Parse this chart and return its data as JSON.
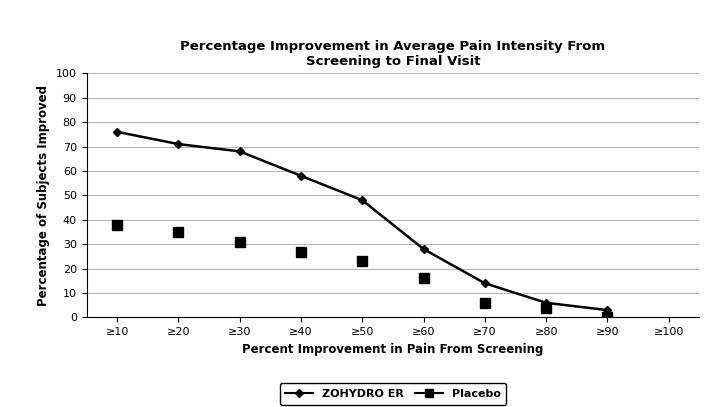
{
  "title": "Percentage Improvement in Average Pain Intensity From\nScreening to Final Visit",
  "xlabel": "Percent Improvement in Pain From Screening",
  "ylabel": "Percentage of Subjects Improved",
  "x_labels": [
    "≥10",
    "≥20",
    "≥30",
    "≥40",
    "≥50",
    "≥60",
    "≥70",
    "≥80",
    "≥90",
    "≥100"
  ],
  "x_values": [
    10,
    20,
    30,
    40,
    50,
    60,
    70,
    80,
    90,
    100
  ],
  "zohydro_values": [
    76,
    71,
    68,
    58,
    48,
    28,
    14,
    6,
    3,
    null
  ],
  "placebo_values": [
    38,
    35,
    31,
    27,
    23,
    16,
    6,
    4,
    0,
    null
  ],
  "ylim": [
    0,
    100
  ],
  "yticks": [
    0,
    10,
    20,
    30,
    40,
    50,
    60,
    70,
    80,
    90,
    100
  ],
  "line_color": "#000000",
  "bg_color": "#ffffff",
  "grid_color": "#b0b0b0",
  "title_fontsize": 9.5,
  "label_fontsize": 8.5,
  "tick_fontsize": 8,
  "legend_fontsize": 8
}
